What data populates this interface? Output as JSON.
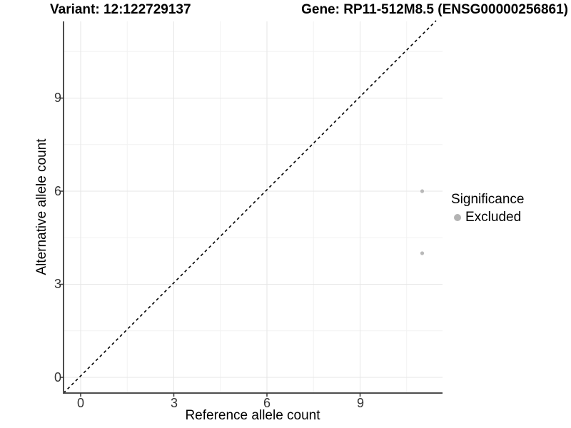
{
  "header": {
    "variant_label": "Variant: 12:122729137",
    "gene_label": "Gene: RP11-512M8.5 (ENSG00000256861)"
  },
  "axes": {
    "x": {
      "label": "Reference allele count",
      "tick_labels": [
        "0",
        "3",
        "6",
        "9"
      ]
    },
    "y": {
      "label": "Alternative allele count",
      "tick_labels": [
        "0",
        "3",
        "6",
        "9"
      ]
    }
  },
  "legend": {
    "title": "Significance",
    "items": [
      {
        "label": "Excluded",
        "color": "#b3b3b3"
      }
    ]
  },
  "chart_data": {
    "type": "scatter",
    "title": "Variant: 12:122729137    Gene: RP11-512M8.5 (ENSG00000256861)",
    "xlabel": "Reference allele count",
    "ylabel": "Alternative allele count",
    "xlim": [
      -0.55,
      11.75
    ],
    "ylim": [
      -0.5,
      11.5
    ],
    "xticks": [
      0,
      3,
      6,
      9
    ],
    "yticks": [
      0,
      3,
      6,
      9
    ],
    "grid": "major and minor gridlines, light gray on white",
    "series": [
      {
        "name": "Excluded",
        "color": "#b8b8b8",
        "marker": "circle",
        "points": [
          [
            11,
            6
          ],
          [
            11,
            4
          ]
        ]
      }
    ],
    "reference_line": {
      "equation": "y = x",
      "style": "dashed",
      "color": "#000000"
    },
    "legend_position": "right",
    "legend_title": "Significance"
  }
}
